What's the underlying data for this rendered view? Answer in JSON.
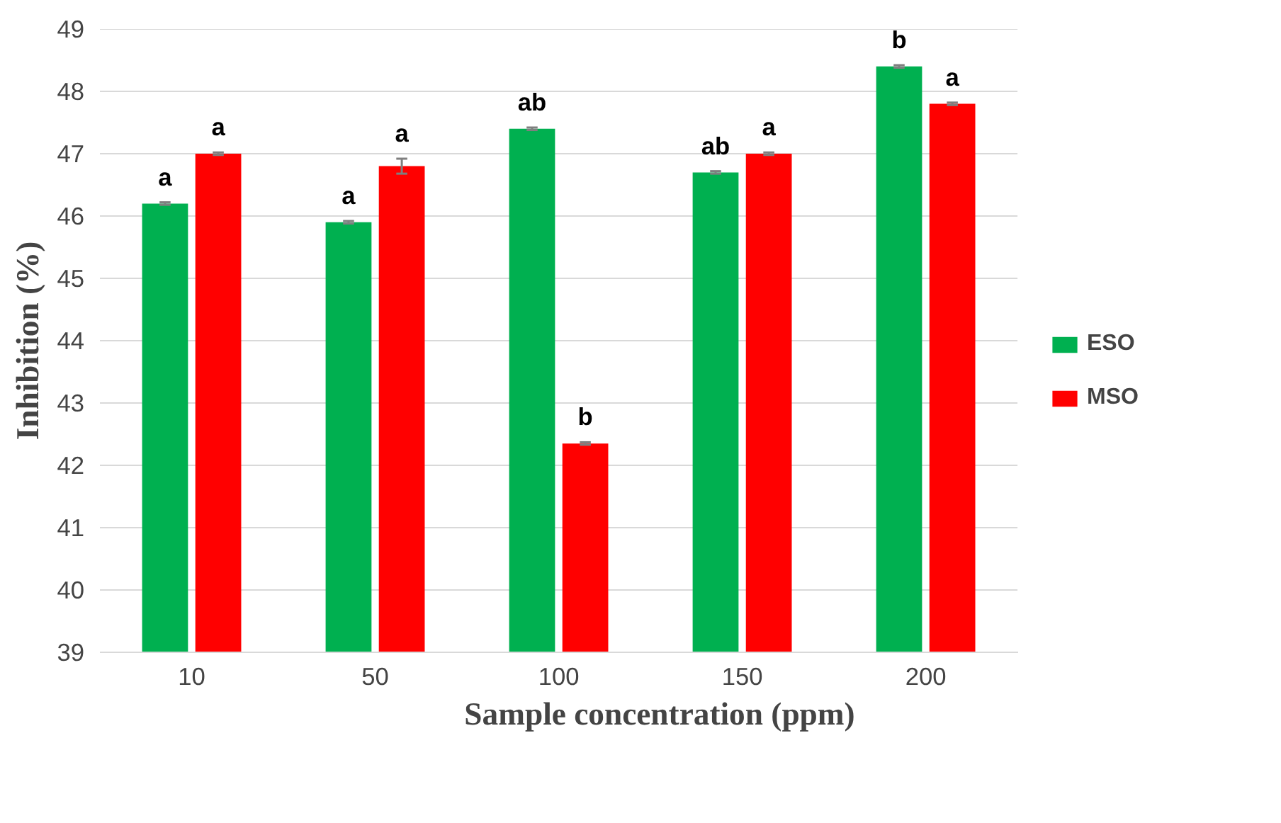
{
  "chart_data": {
    "type": "bar",
    "xlabel": "Sample concentration (ppm)",
    "ylabel": "Inhibition (%)",
    "categories": [
      "10",
      "50",
      "100",
      "150",
      "200"
    ],
    "series": [
      {
        "name": "ESO",
        "color": "#00b050",
        "values": [
          46.2,
          45.9,
          47.4,
          46.7,
          48.4
        ],
        "errors": [
          0.02,
          0.02,
          0.02,
          0.02,
          0.02
        ],
        "value_labels": [
          "a",
          "a",
          "ab",
          "ab",
          "b"
        ]
      },
      {
        "name": "MSO",
        "color": "#ff0000",
        "values": [
          47.0,
          46.8,
          42.35,
          47.0,
          47.8
        ],
        "errors": [
          0.02,
          0.12,
          0.02,
          0.02,
          0.02
        ],
        "value_labels": [
          "a",
          "a",
          "b",
          "a",
          "a"
        ]
      }
    ],
    "ylim": [
      39,
      49
    ],
    "yticks": [
      39,
      40,
      41,
      42,
      43,
      44,
      45,
      46,
      47,
      48,
      49
    ],
    "grid": "y",
    "legend": "right"
  }
}
